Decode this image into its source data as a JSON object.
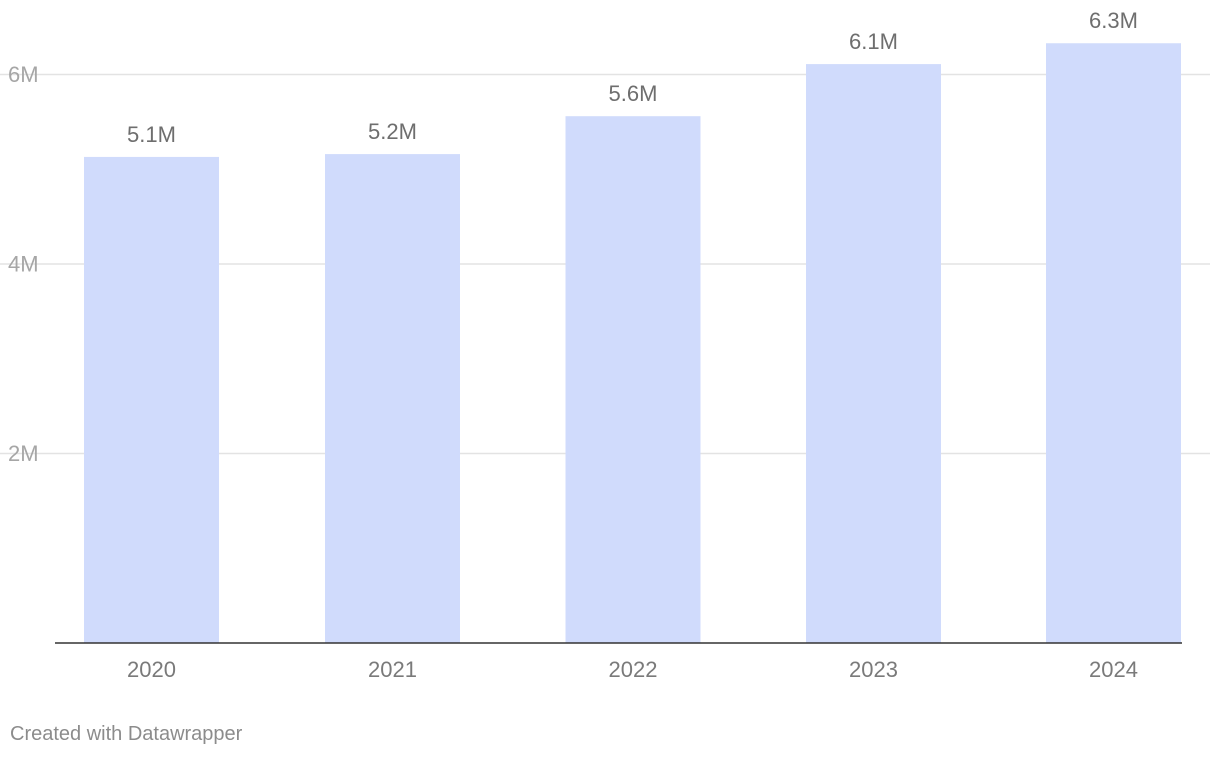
{
  "chart_data": {
    "type": "bar",
    "categories": [
      "2020",
      "2021",
      "2022",
      "2023",
      "2024"
    ],
    "values": [
      5.13,
      5.16,
      5.56,
      6.11,
      6.33
    ],
    "data_labels": [
      "5.1M",
      "5.2M",
      "5.6M",
      "6.1M",
      "6.3M"
    ],
    "y_ticks": [
      {
        "value": 2,
        "label": "2M"
      },
      {
        "value": 4,
        "label": "4M"
      },
      {
        "value": 6,
        "label": "6M"
      }
    ],
    "ylim": [
      0,
      6.6
    ],
    "grid": true,
    "title": "",
    "xlabel": "",
    "ylabel": "",
    "bar_color": "#d0dbfc"
  },
  "footer": {
    "credit": "Created with Datawrapper"
  }
}
